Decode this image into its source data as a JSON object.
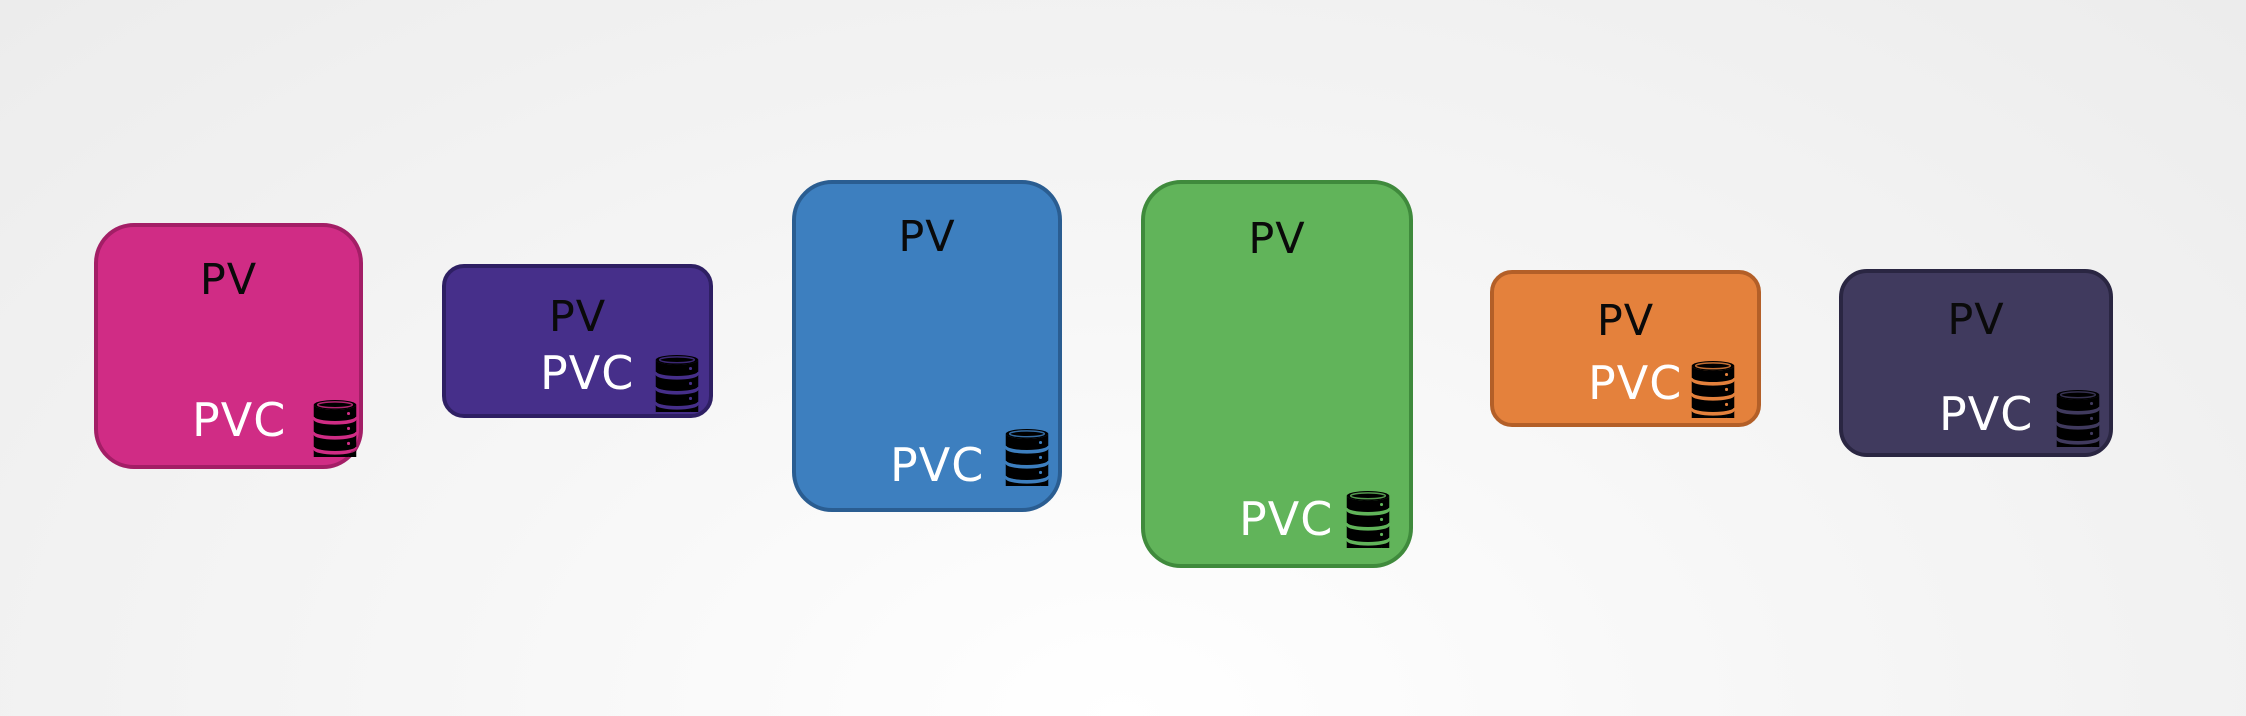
{
  "boxes": [
    {
      "pv_label": "PV",
      "pvc_label": "PVC",
      "fill": "#d02c85",
      "border": "#a31e66",
      "icon": "database-icon",
      "icon_color": "#000000"
    },
    {
      "pv_label": "PV",
      "pvc_label": "PVC",
      "fill": "#462f8a",
      "border": "#2e1f63",
      "icon": "database-icon",
      "icon_color": "#000000"
    },
    {
      "pv_label": "PV",
      "pvc_label": "PVC",
      "fill": "#3d7fbf",
      "border": "#2a5d91",
      "icon": "database-icon",
      "icon_color": "#000000"
    },
    {
      "pv_label": "PV",
      "pvc_label": "PVC",
      "fill": "#61b45a",
      "border": "#3f8a3c",
      "icon": "database-icon",
      "icon_color": "#000000"
    },
    {
      "pv_label": "PV",
      "pvc_label": "PVC",
      "fill": "#e4813c",
      "border": "#b35f28",
      "icon": "database-icon",
      "icon_color": "#000000"
    },
    {
      "pv_label": "PV",
      "pvc_label": "PVC",
      "fill": "#403a5e",
      "border": "#2a2642",
      "icon": "database-icon",
      "icon_color": "#000000"
    }
  ]
}
